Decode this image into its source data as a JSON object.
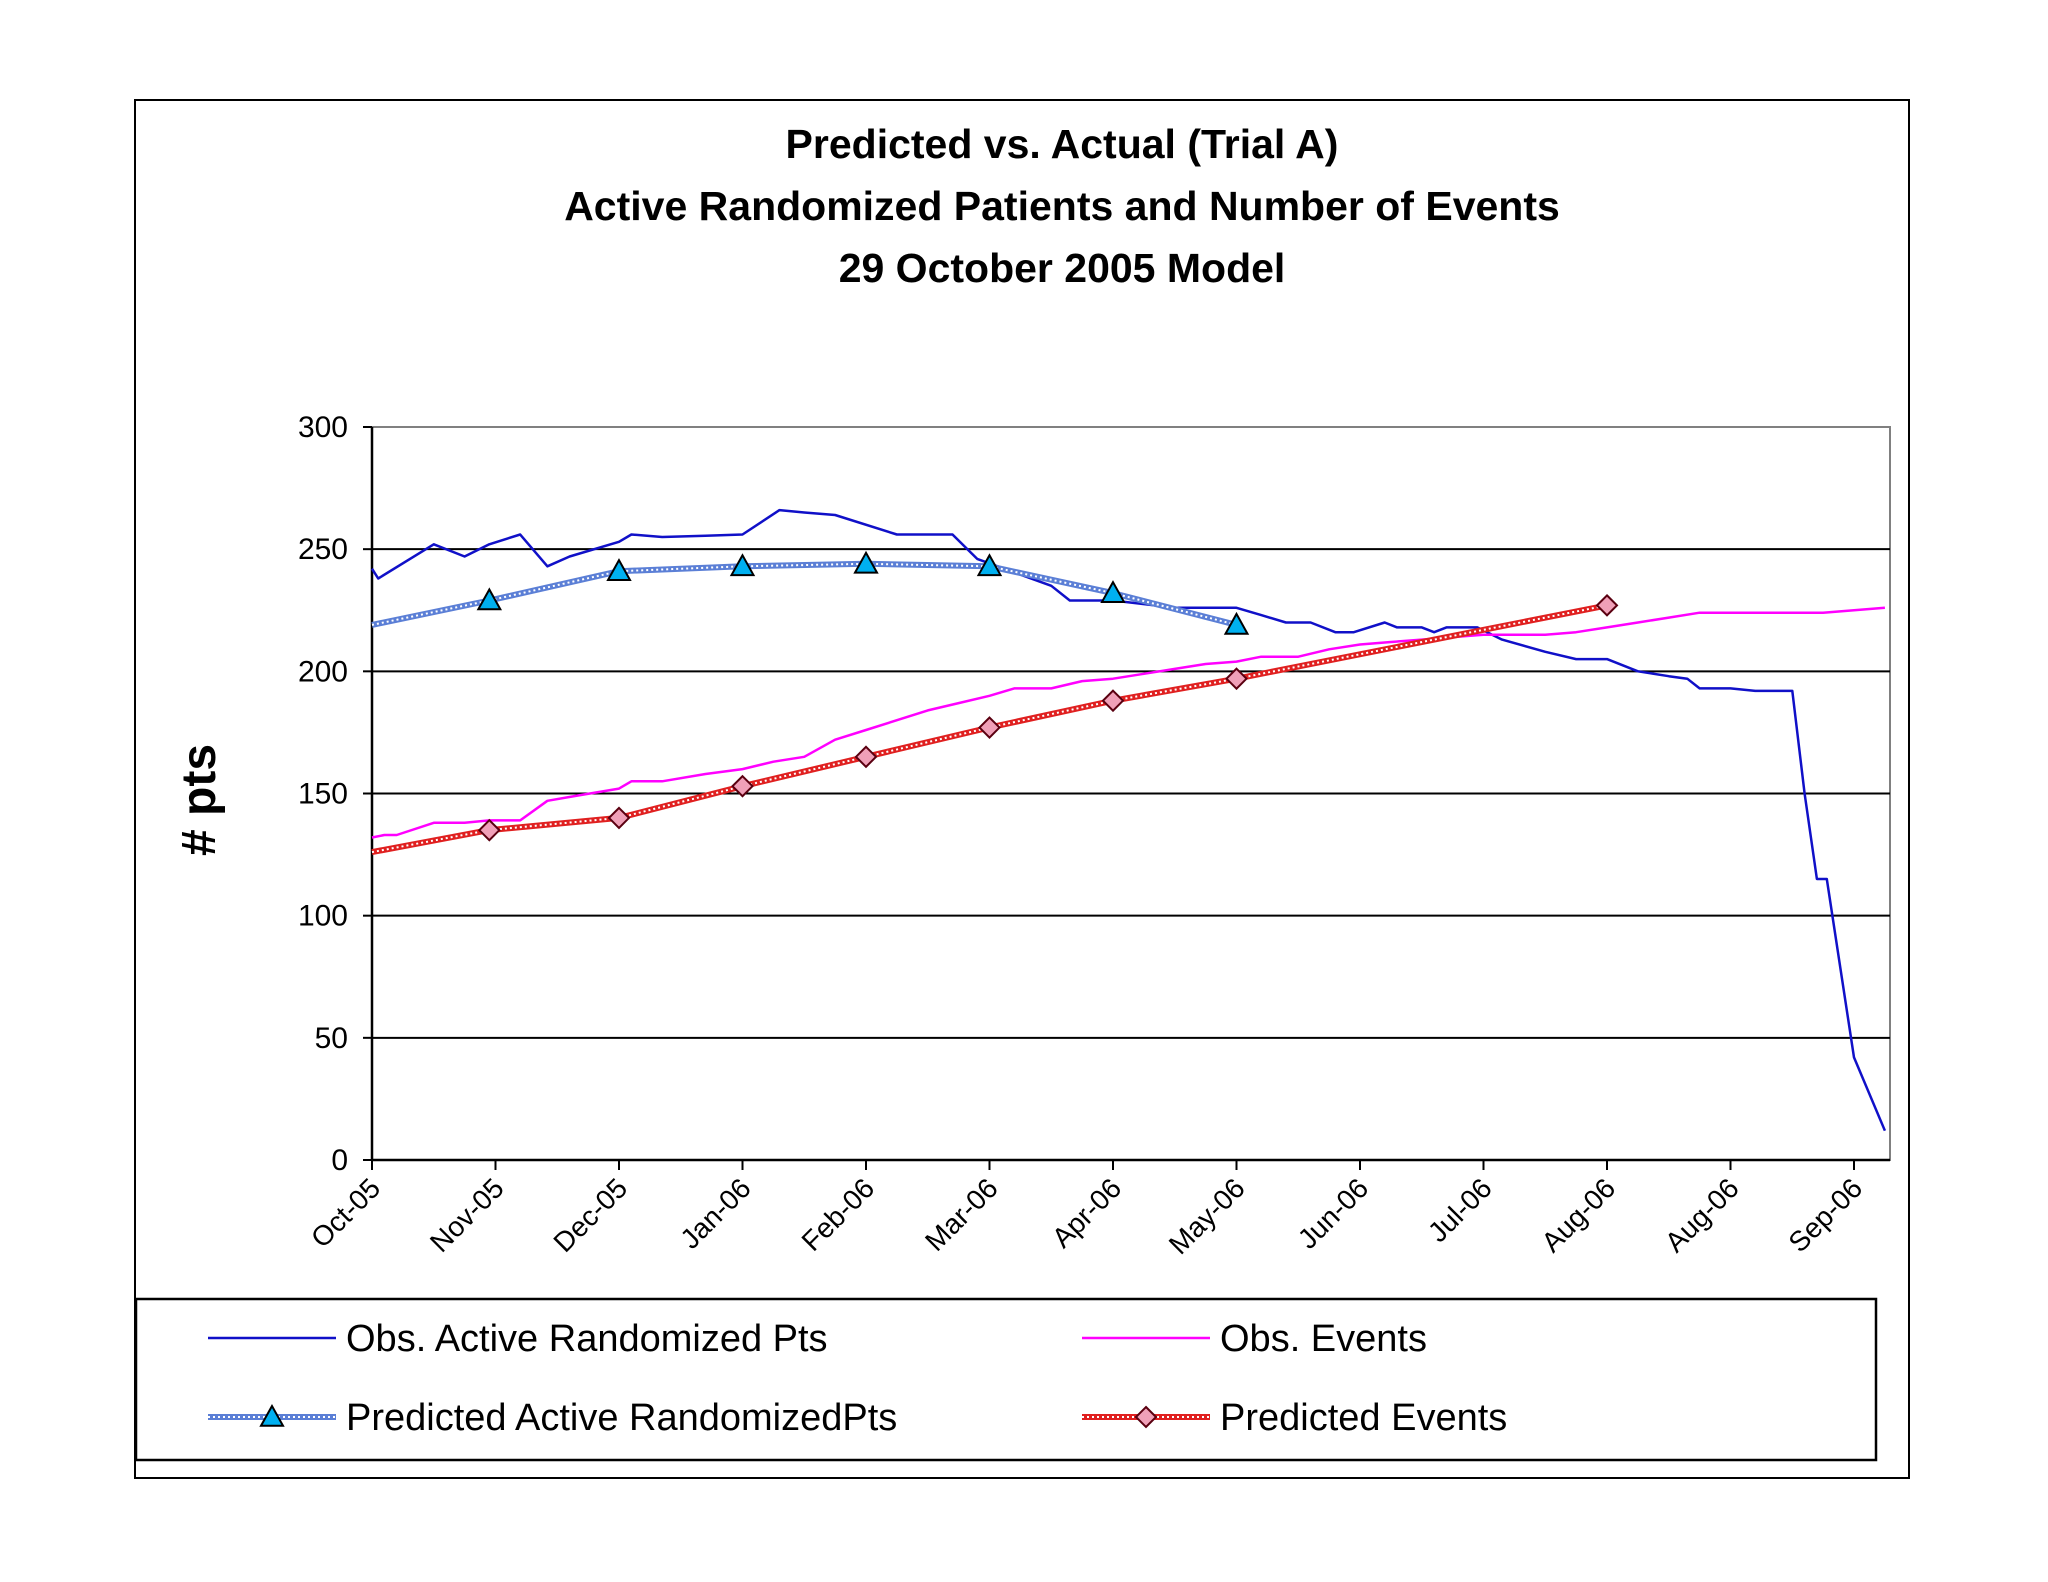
{
  "chart_data": {
    "type": "line",
    "title": [
      "Predicted vs. Actual (Trial A)",
      "Active Randomized Patients and Number of Events",
      "29 October 2005 Model"
    ],
    "xlabel": "",
    "ylabel": "# pts",
    "ylim": [
      0,
      300
    ],
    "yticks": [
      0,
      50,
      100,
      150,
      200,
      250,
      300
    ],
    "xlim": [
      0,
      12
    ],
    "x_tick_labels": [
      "Oct-05",
      "Nov-05",
      "Dec-05",
      "Jan-06",
      "Feb-06",
      "Mar-06",
      "Apr-06",
      "May-06",
      "Jun-06",
      "Jul-06",
      "Aug-06",
      "Aug-06",
      "Sep-06"
    ],
    "grid": "horizontal",
    "legend_position": "bottom",
    "series": [
      {
        "name": "Obs. Active Randomized Pts",
        "color": "#1010c8",
        "style": "solid",
        "marker": "none",
        "points": [
          [
            0,
            242
          ],
          [
            0.05,
            238
          ],
          [
            0.5,
            252
          ],
          [
            0.75,
            247
          ],
          [
            0.95,
            252
          ],
          [
            1.2,
            256
          ],
          [
            1.42,
            243
          ],
          [
            1.6,
            247
          ],
          [
            2,
            253
          ],
          [
            2.1,
            256
          ],
          [
            2.35,
            255
          ],
          [
            2.7,
            255.5
          ],
          [
            3,
            256
          ],
          [
            3.3,
            266
          ],
          [
            3.5,
            265
          ],
          [
            3.75,
            264
          ],
          [
            4.25,
            256
          ],
          [
            4.7,
            256
          ],
          [
            4.9,
            246
          ],
          [
            5.5,
            235
          ],
          [
            5.65,
            229
          ],
          [
            6,
            229
          ],
          [
            6.5,
            226
          ],
          [
            7,
            226
          ],
          [
            7.2,
            223
          ],
          [
            7.4,
            220
          ],
          [
            7.6,
            220
          ],
          [
            7.8,
            216
          ],
          [
            7.95,
            216
          ],
          [
            8.2,
            220
          ],
          [
            8.3,
            218
          ],
          [
            8.5,
            218
          ],
          [
            8.6,
            216
          ],
          [
            8.7,
            218
          ],
          [
            8.95,
            218
          ],
          [
            9.15,
            213
          ],
          [
            9.5,
            208
          ],
          [
            9.75,
            205
          ],
          [
            10,
            205
          ],
          [
            10.25,
            200
          ],
          [
            10.5,
            198
          ],
          [
            10.65,
            197
          ],
          [
            10.75,
            193
          ],
          [
            11,
            193
          ],
          [
            11.2,
            192
          ],
          [
            11.5,
            192
          ],
          [
            11.6,
            150
          ],
          [
            11.7,
            115
          ],
          [
            11.78,
            115
          ],
          [
            11.9,
            75
          ],
          [
            12,
            42
          ],
          [
            12.25,
            12
          ]
        ]
      },
      {
        "name": "Obs. Events",
        "color": "#ff00ff",
        "style": "solid",
        "marker": "none",
        "points": [
          [
            0,
            132
          ],
          [
            0.1,
            133
          ],
          [
            0.2,
            133
          ],
          [
            0.5,
            138
          ],
          [
            0.75,
            138
          ],
          [
            0.95,
            139
          ],
          [
            1.2,
            139
          ],
          [
            1.42,
            147
          ],
          [
            1.65,
            149
          ],
          [
            2,
            152
          ],
          [
            2.1,
            155
          ],
          [
            2.35,
            155
          ],
          [
            2.7,
            158
          ],
          [
            3,
            160
          ],
          [
            3.25,
            163
          ],
          [
            3.5,
            165
          ],
          [
            3.75,
            172
          ],
          [
            4,
            176
          ],
          [
            4.25,
            180
          ],
          [
            4.5,
            184
          ],
          [
            4.75,
            187
          ],
          [
            5,
            190
          ],
          [
            5.2,
            193
          ],
          [
            5.5,
            193
          ],
          [
            5.75,
            196
          ],
          [
            6,
            197
          ],
          [
            6.25,
            199
          ],
          [
            6.5,
            201
          ],
          [
            6.75,
            203
          ],
          [
            7,
            204
          ],
          [
            7.2,
            206
          ],
          [
            7.5,
            206
          ],
          [
            7.75,
            209
          ],
          [
            8,
            211
          ],
          [
            8.25,
            212
          ],
          [
            8.5,
            213
          ],
          [
            8.75,
            214
          ],
          [
            9,
            215
          ],
          [
            9.25,
            215
          ],
          [
            9.5,
            215
          ],
          [
            9.75,
            216
          ],
          [
            10,
            218
          ],
          [
            10.25,
            220
          ],
          [
            10.5,
            222
          ],
          [
            10.75,
            224
          ],
          [
            11,
            224
          ],
          [
            11.25,
            224
          ],
          [
            11.5,
            224
          ],
          [
            11.75,
            224
          ],
          [
            12,
            225
          ],
          [
            12.25,
            226
          ]
        ]
      },
      {
        "name": "Predicted Active RandomizedPts",
        "color": "#5b7fd6",
        "style": "dotted",
        "marker": "triangle",
        "marker_color": "#00b0f0",
        "points": [
          [
            0,
            219
          ],
          [
            0.95,
            229
          ],
          [
            2,
            241
          ],
          [
            3,
            243
          ],
          [
            4,
            244
          ],
          [
            5,
            243
          ],
          [
            6,
            232
          ],
          [
            7,
            219
          ]
        ],
        "marker_points": [
          [
            0.95,
            229
          ],
          [
            2,
            241
          ],
          [
            3,
            243
          ],
          [
            4,
            244
          ],
          [
            5,
            243
          ],
          [
            6,
            232
          ],
          [
            7,
            219
          ]
        ]
      },
      {
        "name": "Predicted Events",
        "color": "#e02020",
        "style": "dotted",
        "marker": "diamond",
        "marker_color": "#f0a0b8",
        "points": [
          [
            0,
            126
          ],
          [
            0.95,
            135
          ],
          [
            2,
            140
          ],
          [
            3,
            153
          ],
          [
            4,
            165
          ],
          [
            5,
            177
          ],
          [
            6,
            188
          ],
          [
            7,
            197
          ],
          [
            10,
            227
          ]
        ],
        "marker_points": [
          [
            0.95,
            135
          ],
          [
            2,
            140
          ],
          [
            3,
            153
          ],
          [
            4,
            165
          ],
          [
            5,
            177
          ],
          [
            6,
            188
          ],
          [
            7,
            197
          ],
          [
            10,
            227
          ]
        ]
      }
    ]
  }
}
